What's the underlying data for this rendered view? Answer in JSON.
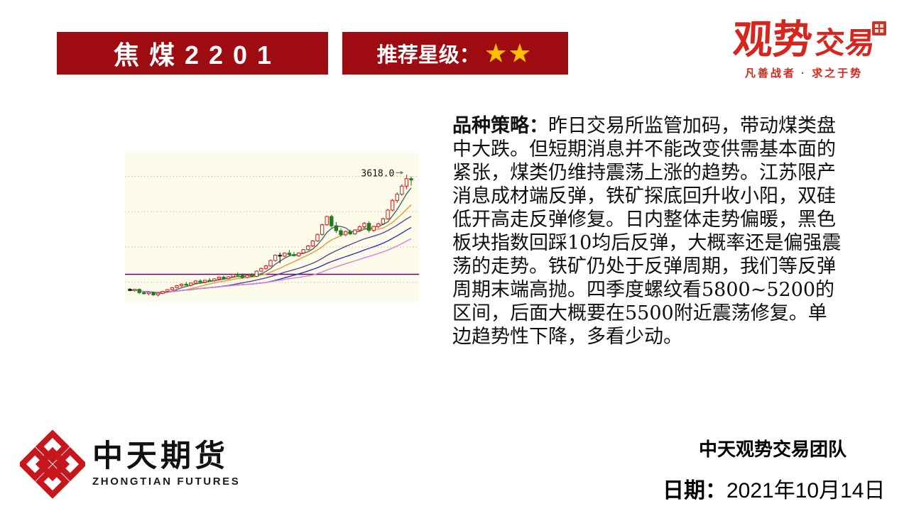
{
  "slide": {
    "title": "焦煤2201",
    "star_label": "推荐星级：",
    "stars": "★★",
    "brand": {
      "name_main": "观势",
      "name_sub": "交易",
      "tagline": "凡善战者 · 求之于势"
    },
    "strategy": {
      "label": "品种策略：",
      "body": "昨日交易所监管加码，带动煤类盘中大跌。但短期消息并不能改变供需基本面的紧张，煤类仍维持震荡上涨的趋势。江苏限产消息成材端反弹，铁矿探底回升收小阳，双硅低开高走反弹修复。日内整体走势偏暖，黑色板块指数回踩10均后反弹，大概率还是偏强震荡的走势。铁矿仍处于反弹周期，我们等反弹周期末端高抛。四季度螺纹看5800~5200的区间，后面大概要在5500附近震荡修复。单边趋势性下降，多看少动。"
    },
    "footer": {
      "company_cn": "中天期货",
      "company_en": "ZHONGTIAN FUTURES",
      "team": "中天观势交易团队",
      "date_label": "日期：",
      "date": "2021年10月14日"
    },
    "colors": {
      "banner_red": "#9E0B10",
      "brand_red": "#D7261E",
      "star_gold": "#FFC000",
      "logo_red": "#C8161D"
    }
  },
  "chart_data": {
    "type": "candlestick",
    "annotation": {
      "text": "3618.0",
      "price": 3618,
      "at": 59
    },
    "ylim": [
      2180,
      3870
    ],
    "gridlines": [
      3600,
      3200,
      2800,
      2400
    ],
    "ref_line": {
      "price": 2490,
      "color": "#5C0C5C"
    },
    "bg": "#FDFBEA",
    "up": "#CC2020",
    "down": "#1E7E1E",
    "ma": [
      {
        "window": 5,
        "color": "#44696B"
      },
      {
        "window": 10,
        "color": "#E69A3C"
      },
      {
        "window": 20,
        "color": "#5A4796"
      },
      {
        "window": 30,
        "color": "#3232C8"
      },
      {
        "window": 40,
        "color": "#DD7EDD"
      }
    ],
    "candles": [
      [
        2320,
        2332,
        2298,
        2306,
        "k"
      ],
      [
        2306,
        2326,
        2292,
        2320
      ],
      [
        2320,
        2330,
        2266,
        2282
      ],
      [
        2282,
        2298,
        2260,
        2270
      ],
      [
        2270,
        2292,
        2252,
        2286
      ],
      [
        2286,
        2294,
        2246,
        2256
      ],
      [
        2256,
        2282,
        2242,
        2276
      ],
      [
        2276,
        2302,
        2264,
        2296
      ],
      [
        2296,
        2322,
        2286,
        2316
      ],
      [
        2316,
        2344,
        2306,
        2338
      ],
      [
        2338,
        2368,
        2328,
        2360
      ],
      [
        2360,
        2388,
        2348,
        2378
      ],
      [
        2378,
        2404,
        2362,
        2366
      ],
      [
        2366,
        2396,
        2354,
        2390
      ],
      [
        2390,
        2424,
        2380,
        2414
      ],
      [
        2414,
        2434,
        2392,
        2400
      ],
      [
        2400,
        2428,
        2390,
        2422
      ],
      [
        2422,
        2448,
        2410,
        2416
      ],
      [
        2416,
        2444,
        2406,
        2438
      ],
      [
        2438,
        2464,
        2426,
        2458
      ],
      [
        2458,
        2474,
        2432,
        2440
      ],
      [
        2440,
        2468,
        2430,
        2462
      ],
      [
        2462,
        2494,
        2452,
        2488
      ],
      [
        2488,
        2512,
        2468,
        2478
      ],
      [
        2478,
        2502,
        2440,
        2454
      ],
      [
        2454,
        2484,
        2444,
        2478
      ],
      [
        2478,
        2504,
        2460,
        2466
      ],
      [
        2466,
        2534,
        2456,
        2526
      ],
      [
        2526,
        2566,
        2514,
        2556
      ],
      [
        2556,
        2596,
        2544,
        2586
      ],
      [
        2586,
        2656,
        2574,
        2646
      ],
      [
        2646,
        2716,
        2634,
        2706
      ],
      [
        2706,
        2736,
        2616,
        2696,
        "k"
      ],
      [
        2696,
        2738,
        2684,
        2730
      ],
      [
        2730,
        2766,
        2702,
        2714
      ],
      [
        2714,
        2744,
        2692,
        2700
      ],
      [
        2700,
        2738,
        2690,
        2732
      ],
      [
        2732,
        2778,
        2722,
        2770
      ],
      [
        2770,
        2822,
        2760,
        2812
      ],
      [
        2812,
        2878,
        2802,
        2868
      ],
      [
        2868,
        2952,
        2858,
        2942
      ],
      [
        2942,
        3062,
        2930,
        3052
      ],
      [
        3052,
        3156,
        3040,
        3146
      ],
      [
        3146,
        3166,
        3020,
        3040
      ],
      [
        3040,
        3082,
        2958,
        2984
      ],
      [
        2984,
        3010,
        2918,
        2938
      ],
      [
        2938,
        2986,
        2924,
        2976
      ],
      [
        2976,
        2996,
        2934,
        2948
      ],
      [
        2948,
        3002,
        2938,
        2992
      ],
      [
        2992,
        3042,
        2974,
        3030
      ],
      [
        3030,
        3082,
        3010,
        3068
      ],
      [
        3068,
        3092,
        2964,
        2988
      ],
      [
        2988,
        3042,
        2972,
        3032
      ],
      [
        3032,
        3076,
        3014,
        3062
      ],
      [
        3062,
        3132,
        3048,
        3120
      ],
      [
        3120,
        3232,
        3108,
        3218
      ],
      [
        3218,
        3342,
        3204,
        3328
      ],
      [
        3328,
        3420,
        3300,
        3398
      ],
      [
        3398,
        3512,
        3380,
        3490
      ],
      [
        3490,
        3618,
        3455,
        3575
      ],
      [
        3575,
        3600,
        3495,
        3560
      ]
    ]
  }
}
